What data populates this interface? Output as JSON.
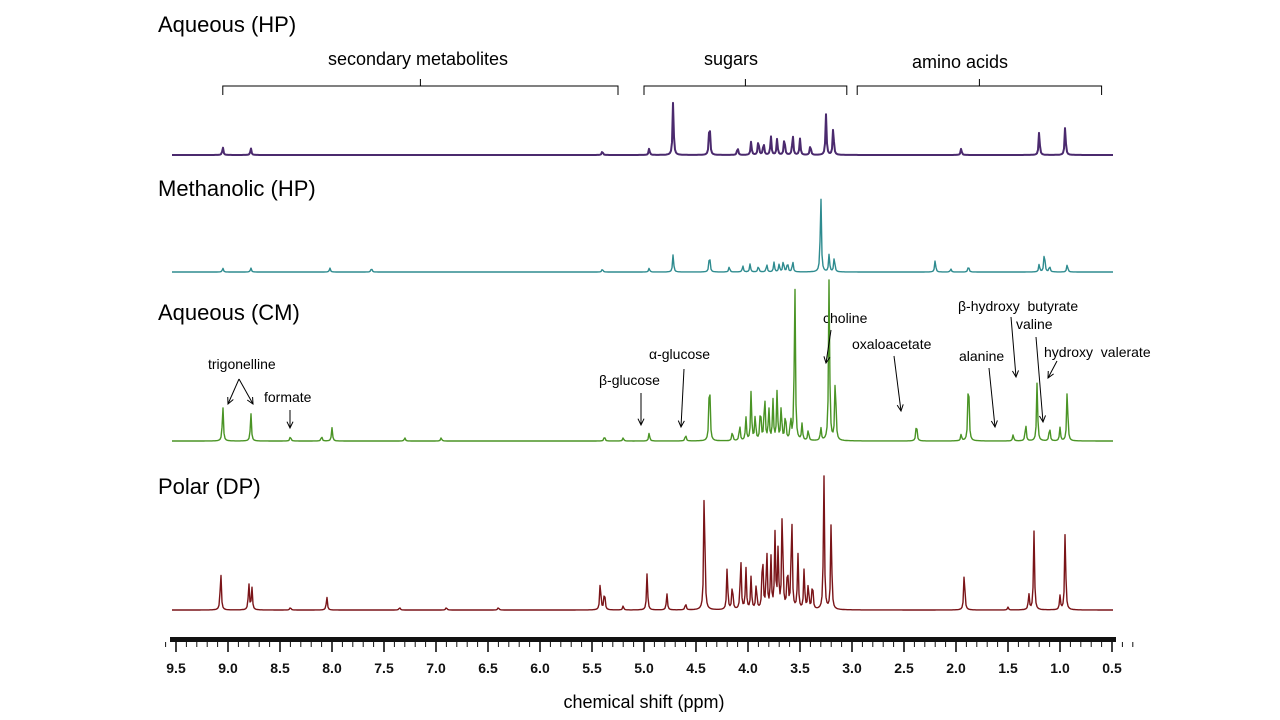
{
  "chart_data": {
    "type": "line",
    "title": "",
    "xlabel": "chemical shift (ppm)",
    "ylabel": "",
    "xlim": [
      9.6,
      0.25
    ],
    "ticks": [
      "9.5",
      "9.0",
      "8.5",
      "8.0",
      "7.5",
      "7.0",
      "6.5",
      "6.0",
      "5.5",
      "5.0",
      "4.5",
      "4.0",
      "3.5",
      "3.0",
      "2.5",
      "2.0",
      "1.5",
      "1.0",
      "0.5"
    ],
    "regions": [
      {
        "label": "secondary metabolites",
        "from": 9.05,
        "to": 5.25
      },
      {
        "label": "sugars",
        "from": 5.0,
        "to": 3.05
      },
      {
        "label": "amino acids",
        "from": 2.95,
        "to": 0.6
      }
    ],
    "series": [
      {
        "name": "Aqueous (HP)",
        "color": "#4b2a6e",
        "peaks": [
          [
            9.05,
            0.06
          ],
          [
            8.78,
            0.05
          ],
          [
            5.4,
            0.03
          ],
          [
            4.95,
            0.05
          ],
          [
            4.72,
            0.4
          ],
          [
            4.37,
            0.28
          ],
          [
            4.1,
            0.06
          ],
          [
            3.97,
            0.1
          ],
          [
            3.9,
            0.12
          ],
          [
            3.85,
            0.1
          ],
          [
            3.78,
            0.14
          ],
          [
            3.72,
            0.12
          ],
          [
            3.65,
            0.14
          ],
          [
            3.57,
            0.16
          ],
          [
            3.5,
            0.12
          ],
          [
            3.4,
            0.08
          ],
          [
            3.25,
            0.3
          ],
          [
            3.18,
            0.22
          ],
          [
            1.95,
            0.05
          ],
          [
            1.2,
            0.18
          ],
          [
            0.95,
            0.22
          ]
        ]
      },
      {
        "name": "Methanolic (HP)",
        "color": "#2e8b8f",
        "peaks": [
          [
            9.05,
            0.05
          ],
          [
            8.78,
            0.05
          ],
          [
            8.02,
            0.05
          ],
          [
            7.62,
            0.05
          ],
          [
            5.4,
            0.04
          ],
          [
            4.95,
            0.05
          ],
          [
            4.72,
            0.22
          ],
          [
            4.37,
            0.24
          ],
          [
            4.18,
            0.07
          ],
          [
            4.05,
            0.08
          ],
          [
            3.98,
            0.1
          ],
          [
            3.9,
            0.08
          ],
          [
            3.82,
            0.1
          ],
          [
            3.75,
            0.12
          ],
          [
            3.7,
            0.1
          ],
          [
            3.66,
            0.15
          ],
          [
            3.62,
            0.13
          ],
          [
            3.57,
            0.14
          ],
          [
            3.3,
            1.0
          ],
          [
            3.22,
            0.22
          ],
          [
            3.17,
            0.2
          ],
          [
            2.2,
            0.15
          ],
          [
            2.05,
            0.04
          ],
          [
            1.88,
            0.08
          ],
          [
            1.2,
            0.1
          ],
          [
            1.15,
            0.27
          ],
          [
            1.1,
            0.08
          ],
          [
            0.93,
            0.1
          ]
        ]
      },
      {
        "name": "Aqueous (CM)",
        "color": "#4a9425",
        "peaks": [
          [
            9.05,
            0.22
          ],
          [
            8.78,
            0.17
          ],
          [
            8.4,
            0.03
          ],
          [
            8.1,
            0.03
          ],
          [
            8.0,
            0.08
          ],
          [
            7.3,
            0.02
          ],
          [
            6.95,
            0.02
          ],
          [
            5.38,
            0.03
          ],
          [
            5.2,
            0.02
          ],
          [
            4.95,
            0.05
          ],
          [
            4.6,
            0.04
          ],
          [
            4.37,
            0.44
          ],
          [
            4.15,
            0.06
          ],
          [
            4.08,
            0.1
          ],
          [
            4.02,
            0.14
          ],
          [
            3.97,
            0.3
          ],
          [
            3.93,
            0.16
          ],
          [
            3.88,
            0.22
          ],
          [
            3.84,
            0.3
          ],
          [
            3.8,
            0.2
          ],
          [
            3.76,
            0.24
          ],
          [
            3.72,
            0.3
          ],
          [
            3.68,
            0.22
          ],
          [
            3.64,
            0.18
          ],
          [
            3.59,
            0.14
          ],
          [
            3.55,
            1.0
          ],
          [
            3.48,
            0.1
          ],
          [
            3.42,
            0.07
          ],
          [
            3.3,
            0.08
          ],
          [
            3.22,
            1.0
          ],
          [
            3.16,
            0.43
          ],
          [
            2.38,
            0.12
          ],
          [
            1.95,
            0.04
          ],
          [
            1.88,
            0.45
          ],
          [
            1.45,
            0.04
          ],
          [
            1.33,
            0.11
          ],
          [
            1.22,
            0.36
          ],
          [
            1.1,
            0.09
          ],
          [
            1.0,
            0.08
          ],
          [
            0.93,
            0.34
          ]
        ]
      },
      {
        "name": "Polar (DP)",
        "color": "#7a1418",
        "peaks": [
          [
            9.07,
            0.3
          ],
          [
            8.8,
            0.2
          ],
          [
            8.77,
            0.16
          ],
          [
            8.4,
            0.02
          ],
          [
            8.05,
            0.1
          ],
          [
            7.35,
            0.02
          ],
          [
            6.9,
            0.02
          ],
          [
            6.4,
            0.02
          ],
          [
            5.42,
            0.22
          ],
          [
            5.38,
            0.15
          ],
          [
            5.2,
            0.03
          ],
          [
            4.97,
            0.27
          ],
          [
            4.78,
            0.12
          ],
          [
            4.6,
            0.05
          ],
          [
            4.42,
            1.0
          ],
          [
            4.2,
            0.32
          ],
          [
            4.15,
            0.2
          ],
          [
            4.07,
            0.4
          ],
          [
            4.02,
            0.3
          ],
          [
            3.97,
            0.24
          ],
          [
            3.92,
            0.2
          ],
          [
            3.86,
            0.46
          ],
          [
            3.82,
            0.46
          ],
          [
            3.78,
            0.38
          ],
          [
            3.74,
            0.54
          ],
          [
            3.71,
            0.44
          ],
          [
            3.67,
            0.8
          ],
          [
            3.62,
            0.34
          ],
          [
            3.58,
            0.76
          ],
          [
            3.52,
            0.4
          ],
          [
            3.46,
            0.3
          ],
          [
            3.42,
            0.2
          ],
          [
            3.38,
            0.22
          ],
          [
            3.27,
            0.98
          ],
          [
            3.2,
            0.67
          ],
          [
            1.92,
            0.3
          ],
          [
            1.5,
            0.02
          ],
          [
            1.3,
            0.12
          ],
          [
            1.25,
            0.57
          ],
          [
            1.0,
            0.1
          ],
          [
            0.95,
            0.6
          ]
        ]
      }
    ],
    "annotations": [
      {
        "label": "trigonelline",
        "targets": [
          9.05,
          8.78
        ]
      },
      {
        "label": "formate",
        "targets": [
          8.4
        ]
      },
      {
        "label": "β-glucose",
        "targets": [
          4.95
        ]
      },
      {
        "label": "α-glucose",
        "targets": [
          4.55
        ]
      },
      {
        "label": "choline",
        "targets": [
          3.22
        ]
      },
      {
        "label": "oxaloacetate",
        "targets": [
          2.38
        ]
      },
      {
        "label": "alanine",
        "targets": [
          1.45
        ]
      },
      {
        "label": "β-hydroxy  butyrate",
        "targets": [
          1.22
        ]
      },
      {
        "label": "valine",
        "targets": [
          0.98
        ]
      },
      {
        "label": "hydroxy  valerate",
        "targets": [
          0.93
        ]
      }
    ]
  }
}
